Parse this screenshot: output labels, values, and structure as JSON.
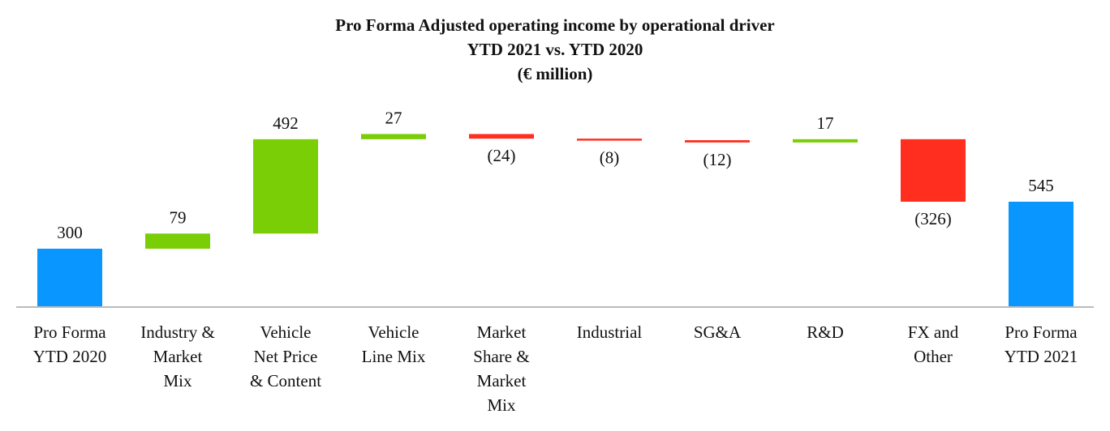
{
  "chart_data": {
    "type": "waterfall",
    "title": "Pro Forma Adjusted operating income by operational driver",
    "subtitle": "YTD 2021 vs. YTD 2020",
    "unit": "(€ million)",
    "categories": [
      [
        "Pro Forma",
        "YTD 2020"
      ],
      [
        "Industry &",
        "Market",
        "Mix"
      ],
      [
        "Vehicle",
        "Net Price",
        "& Content"
      ],
      [
        "Vehicle",
        "Line Mix"
      ],
      [
        "Market",
        "Share &",
        "Market",
        "Mix"
      ],
      [
        "Industrial"
      ],
      [
        "SG&A"
      ],
      [
        "R&D"
      ],
      [
        "FX and",
        "Other"
      ],
      [
        "Pro Forma",
        "YTD 2021"
      ]
    ],
    "values": [
      300,
      79,
      492,
      27,
      -24,
      -8,
      -12,
      17,
      -326,
      545
    ],
    "kinds": [
      "total",
      "delta",
      "delta",
      "delta",
      "delta",
      "delta",
      "delta",
      "delta",
      "delta",
      "total"
    ],
    "data_labels": [
      "300",
      "79",
      "492",
      "27",
      "(24)",
      "(8)",
      "(12)",
      "17",
      "(326)",
      "545"
    ],
    "colors": {
      "total": "#0a96ff",
      "increase": "#7ace05",
      "decrease": "#ff2e1f",
      "axis": "#bbbbbb"
    },
    "grid": false,
    "legend": "none"
  }
}
